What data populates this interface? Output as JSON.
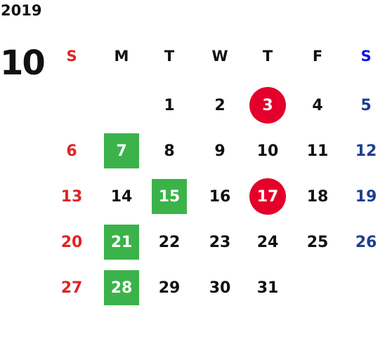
{
  "header": {
    "year": "2019",
    "month": "10"
  },
  "weekdays": [
    "S",
    "M",
    "T",
    "W",
    "T",
    "F",
    "S"
  ],
  "weeks": [
    [
      null,
      null,
      {
        "text": "1"
      },
      {
        "text": "2"
      },
      {
        "text": "3",
        "badge": "circle"
      },
      {
        "text": "4"
      },
      {
        "text": "5"
      }
    ],
    [
      {
        "text": "6"
      },
      {
        "text": "7",
        "badge": "square"
      },
      {
        "text": "8"
      },
      {
        "text": "9"
      },
      {
        "text": "10"
      },
      {
        "text": "11"
      },
      {
        "text": "12"
      }
    ],
    [
      {
        "text": "13"
      },
      {
        "text": "14"
      },
      {
        "text": "15",
        "badge": "square"
      },
      {
        "text": "16"
      },
      {
        "text": "17",
        "badge": "circle"
      },
      {
        "text": "18"
      },
      {
        "text": "19"
      }
    ],
    [
      {
        "text": "20"
      },
      {
        "text": "21",
        "badge": "square"
      },
      {
        "text": "22"
      },
      {
        "text": "23"
      },
      {
        "text": "24"
      },
      {
        "text": "25"
      },
      {
        "text": "26"
      }
    ],
    [
      {
        "text": "27"
      },
      {
        "text": "28",
        "badge": "square"
      },
      {
        "text": "29"
      },
      {
        "text": "30"
      },
      {
        "text": "31"
      },
      null,
      null
    ]
  ]
}
